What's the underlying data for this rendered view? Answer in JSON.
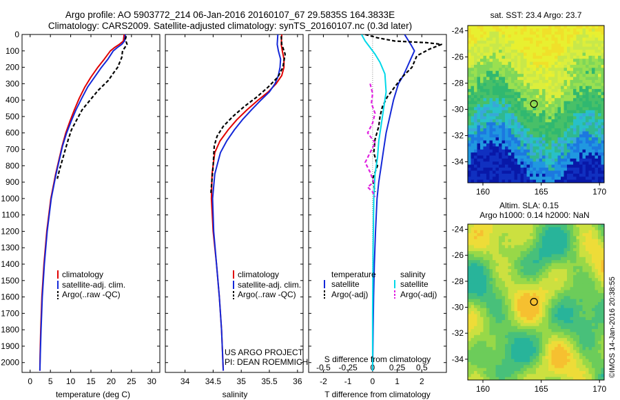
{
  "header": {
    "line1": "Argo profile: AO 5903772_214 06-Jan-2016 20160107_67 29.5835S 164.3833E",
    "line2": "Climatology: CARS2009. Satellite-adjusted climatology: synTS_20160107.nc (0.3d later)"
  },
  "credits": {
    "line1": "US ARGO PROJECT",
    "line2": "PI: DEAN ROEMMICH"
  },
  "stamp": "©IMOS 14-Jan-2016 20:38:55",
  "colors": {
    "climatology": "#e00000",
    "satellite": "#1428d8",
    "argo": "#000000",
    "sal_satellite": "#00d8e8",
    "sal_argo": "#e020e0"
  },
  "chart_data": [
    {
      "type": "line",
      "xlabel": "temperature (deg C)",
      "xticks": [
        "0",
        "5",
        "10",
        "15",
        "20",
        "25",
        "30"
      ],
      "xlim": [
        -2,
        32
      ],
      "ylim": [
        0,
        2060
      ],
      "yticks": [
        "0",
        "100",
        "200",
        "300",
        "400",
        "500",
        "600",
        "700",
        "800",
        "900",
        "1000",
        "1100",
        "1200",
        "1300",
        "1400",
        "1500",
        "1600",
        "1700",
        "1800",
        "1900",
        "2000"
      ],
      "legend": [
        "climatology",
        "satellite-adj. clim.",
        "Argo(..raw -QC)"
      ],
      "series": [
        {
          "name": "climatology",
          "color": "#e00000",
          "x": [
            23.2,
            23.0,
            22.0,
            20.8,
            19.8,
            18.3,
            16.7,
            15.0,
            13.5,
            12.1,
            10.9,
            9.8,
            8.8,
            7.9,
            6.3,
            5.1,
            4.1,
            3.4,
            2.9,
            2.6,
            2.45,
            2.4
          ],
          "y": [
            0,
            40,
            60,
            80,
            100,
            150,
            200,
            260,
            320,
            390,
            460,
            530,
            600,
            680,
            850,
            1000,
            1200,
            1400,
            1600,
            1800,
            1950,
            2050
          ]
        },
        {
          "name": "satellite-adj. clim.",
          "color": "#1428d8",
          "x": [
            23.5,
            23.3,
            22.6,
            21.5,
            20.5,
            19.2,
            17.6,
            15.9,
            14.2,
            12.7,
            11.3,
            10.1,
            9.0,
            8.0,
            6.4,
            5.2,
            4.2,
            3.5,
            3.0,
            2.7,
            2.5,
            2.4
          ],
          "y": [
            0,
            40,
            60,
            80,
            100,
            150,
            200,
            260,
            320,
            390,
            460,
            530,
            600,
            680,
            850,
            1000,
            1200,
            1400,
            1600,
            1800,
            1950,
            2050
          ]
        },
        {
          "name": "Argo(..raw -QC)",
          "color": "#000000",
          "x": [
            23.7,
            23.5,
            23.9,
            22.8,
            22.6,
            21.6,
            20.4,
            19.3,
            16.8,
            14.8,
            12.8,
            11.5,
            10.2,
            9.4,
            8.7,
            8.0,
            7.3,
            6.7
          ],
          "y": [
            10,
            30,
            60,
            100,
            140,
            200,
            240,
            280,
            340,
            400,
            460,
            520,
            580,
            640,
            700,
            760,
            820,
            880
          ]
        }
      ]
    },
    {
      "type": "line",
      "xlabel": "salinity",
      "xticks": [
        "34",
        "34.5",
        "35",
        "35.5",
        "36"
      ],
      "xlim": [
        33.65,
        36.1
      ],
      "ylim": [
        0,
        2060
      ],
      "legend": [
        "climatology",
        "satellite-adj. clim.",
        "Argo(..raw -QC)"
      ],
      "series": [
        {
          "name": "climatology",
          "color": "#e00000",
          "x": [
            35.72,
            35.71,
            35.73,
            35.76,
            35.76,
            35.72,
            35.62,
            35.48,
            35.3,
            35.1,
            34.92,
            34.77,
            34.62,
            34.53,
            34.48,
            34.47,
            34.5,
            34.56,
            34.61,
            34.65,
            34.68
          ],
          "y": [
            0,
            60,
            100,
            150,
            200,
            250,
            300,
            350,
            400,
            460,
            520,
            580,
            650,
            720,
            850,
            1000,
            1200,
            1400,
            1600,
            1800,
            2050
          ]
        },
        {
          "name": "satellite-adj. clim.",
          "color": "#1428d8",
          "x": [
            35.65,
            35.64,
            35.66,
            35.7,
            35.69,
            35.66,
            35.6,
            35.5,
            35.35,
            35.18,
            35.02,
            34.88,
            34.74,
            34.63,
            34.53,
            34.49,
            34.51,
            34.56,
            34.61,
            34.65,
            34.68
          ],
          "y": [
            0,
            60,
            100,
            150,
            200,
            250,
            300,
            350,
            400,
            460,
            520,
            580,
            650,
            720,
            850,
            1000,
            1200,
            1400,
            1600,
            1800,
            2050
          ]
        },
        {
          "name": "Argo(..raw -QC)",
          "color": "#000000",
          "x": [
            35.71,
            35.72,
            35.78,
            35.74,
            35.65,
            35.48,
            35.28,
            35.05,
            34.85,
            34.68,
            34.57,
            34.52,
            34.51,
            34.5,
            34.48,
            34.46
          ],
          "y": [
            10,
            60,
            120,
            200,
            260,
            320,
            380,
            440,
            500,
            560,
            620,
            680,
            740,
            800,
            880,
            970
          ]
        }
      ]
    },
    {
      "type": "line",
      "xlabel": "T difference from climatology",
      "xlabel_top": "S difference from climatology",
      "xticks": [
        "-2",
        "-1",
        "0",
        "1",
        "2"
      ],
      "xticks_top": [
        "-0.5",
        "-0.25",
        "0",
        "0.25",
        "0.5"
      ],
      "xlim": [
        -2.6,
        3.0
      ],
      "ylim": [
        0,
        2060
      ],
      "legend_headers": [
        "temperature",
        "salinity"
      ],
      "legend": [
        "satellite",
        "Argo(-adj)",
        "satellite",
        "Argo(-adj)"
      ],
      "series": [
        {
          "name": "satellite",
          "color": "#1428d8",
          "x": [
            1.3,
            1.55,
            1.7,
            1.55,
            1.4,
            1.25,
            1.05,
            0.85,
            0.7,
            0.55,
            0.45,
            0.35,
            0.25,
            0.18,
            0.12,
            0.07,
            0.04,
            0.02,
            0.01,
            0.0
          ],
          "y": [
            0,
            60,
            100,
            150,
            200,
            250,
            300,
            400,
            500,
            600,
            700,
            800,
            900,
            1000,
            1200,
            1400,
            1600,
            1800,
            1950,
            2050
          ]
        },
        {
          "name": "Argo(-adj)",
          "color": "#000000",
          "x": [
            -0.3,
            0.2,
            0.9,
            2.2,
            2.8,
            2.3,
            1.8,
            1.6,
            1.2,
            0.9,
            0.6,
            0.4,
            0.3,
            0.25,
            0.1,
            0.05,
            0.2,
            0.0,
            0.1
          ],
          "y": [
            0,
            20,
            40,
            50,
            60,
            90,
            130,
            200,
            260,
            320,
            380,
            440,
            500,
            560,
            640,
            720,
            800,
            880,
            960
          ]
        },
        {
          "name": "satellite",
          "color": "#00d8e8",
          "x": [
            -0.45,
            -0.3,
            -0.1,
            0.1,
            0.3,
            0.5,
            0.55,
            0.45,
            0.35,
            0.25,
            0.2,
            0.1,
            0.05,
            0.02,
            0.0,
            0.0
          ],
          "y": [
            0,
            40,
            80,
            120,
            170,
            240,
            350,
            450,
            550,
            650,
            750,
            850,
            1000,
            1300,
            1700,
            2050
          ]
        },
        {
          "name": "Argo(-adj)",
          "color": "#e020e0",
          "x": [
            -0.1,
            0.0,
            -0.05,
            0.1,
            0.0,
            -0.2,
            0.1,
            -0.1,
            -0.3,
            -0.1,
            0.05,
            -0.2,
            0.0,
            0.1
          ],
          "y": [
            300,
            360,
            420,
            480,
            540,
            600,
            660,
            720,
            780,
            840,
            900,
            930,
            960,
            990
          ]
        }
      ]
    },
    {
      "type": "heatmap",
      "title": "sat. SST: 23.4 Argo: 23.7",
      "xticks": [
        "160",
        "165",
        "170"
      ],
      "yticks": [
        "-24",
        "-26",
        "-28",
        "-30",
        "-32",
        "-34"
      ],
      "xlim": [
        158.7,
        170.4
      ],
      "ylim": [
        -35.6,
        -23.6
      ],
      "marker": {
        "lon": 164.38,
        "lat": -29.58
      }
    },
    {
      "type": "heatmap",
      "title_line1": "Altim. SLA: 0.15",
      "title_line2": "Argo h1000: 0.14 h2000: NaN",
      "xticks": [
        "160",
        "165",
        "170"
      ],
      "yticks": [
        "-24",
        "-26",
        "-28",
        "-30",
        "-32",
        "-34"
      ],
      "xlim": [
        158.7,
        170.4
      ],
      "ylim": [
        -35.6,
        -23.6
      ],
      "marker": {
        "lon": 164.38,
        "lat": -29.58
      }
    }
  ]
}
